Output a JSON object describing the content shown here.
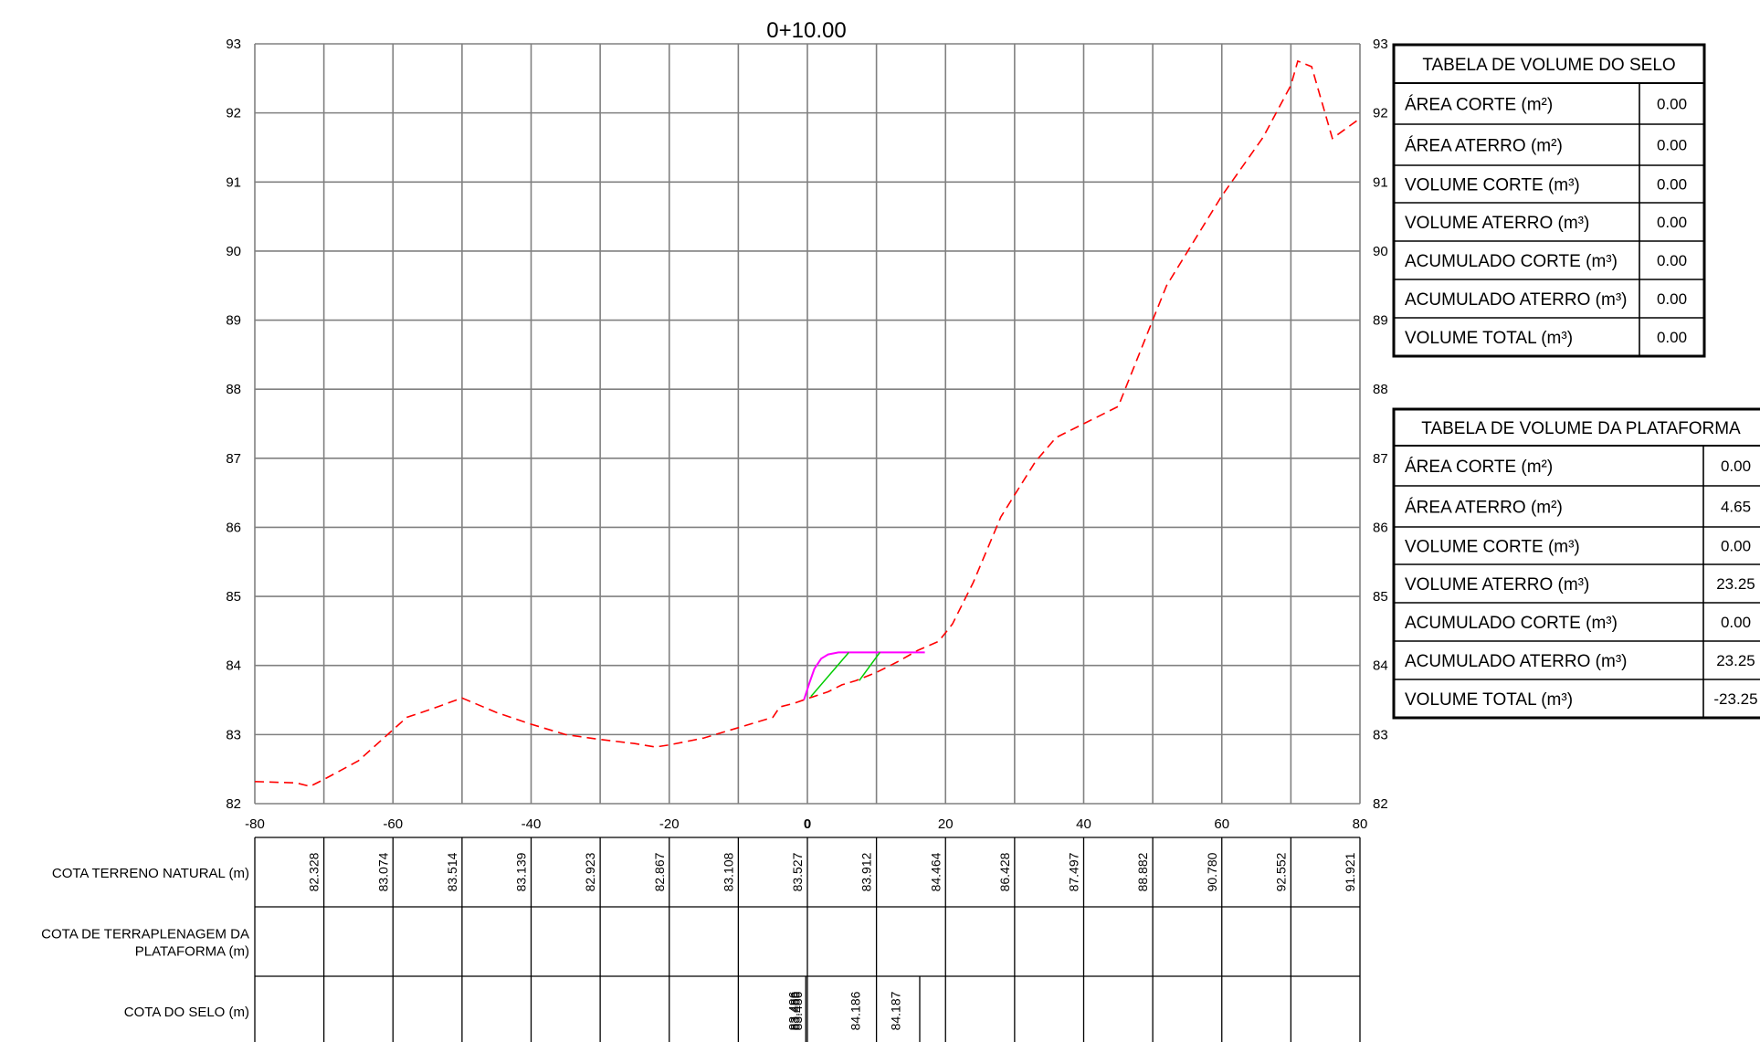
{
  "chart_data": {
    "type": "line",
    "title": "0+10.00",
    "xlim": [
      -80,
      80
    ],
    "ylim": [
      82,
      93
    ],
    "x_ticks": [
      "-80",
      "-60",
      "-40",
      "-20",
      "0",
      "20",
      "40",
      "60",
      "80"
    ],
    "y_ticks": [
      "82",
      "83",
      "84",
      "85",
      "86",
      "87",
      "88",
      "89",
      "90",
      "91",
      "92",
      "93"
    ],
    "grid": true,
    "series": [
      {
        "color": "#ff0000",
        "style": "dashed",
        "x": [
          -80,
          -74,
          -72,
          -70,
          -65,
          -60,
          -58,
          -55,
          -50,
          -45,
          -40,
          -35,
          -30,
          -25,
          -22,
          -20,
          -15,
          -10,
          -5,
          -4,
          -2,
          0,
          3,
          5,
          7,
          10,
          13,
          16,
          19,
          21,
          24,
          28,
          33,
          36,
          40,
          45,
          48,
          50,
          52,
          56,
          60,
          66,
          70,
          71,
          73,
          76,
          80
        ],
        "y": [
          82.32,
          82.3,
          82.25,
          82.35,
          82.62,
          83.07,
          83.25,
          83.35,
          83.53,
          83.32,
          83.15,
          83.0,
          82.93,
          82.87,
          82.82,
          82.85,
          82.95,
          83.1,
          83.25,
          83.4,
          83.45,
          83.52,
          83.62,
          83.72,
          83.78,
          83.9,
          84.05,
          84.22,
          84.35,
          84.6,
          85.2,
          86.15,
          86.95,
          87.3,
          87.5,
          87.75,
          88.5,
          89.0,
          89.5,
          90.15,
          90.8,
          91.65,
          92.4,
          92.75,
          92.67,
          91.63,
          91.92
        ]
      },
      {
        "color": "#ff00ff",
        "style": "solid",
        "x": [
          -0.5,
          0.3,
          1.0,
          2.0,
          3.0,
          4.5,
          7.0,
          10.0,
          13.0,
          16.0,
          17.0
        ],
        "y": [
          83.5,
          83.75,
          83.95,
          84.1,
          84.16,
          84.19,
          84.19,
          84.19,
          84.19,
          84.19,
          84.19
        ]
      }
    ],
    "hatch_segments": [
      {
        "x": [
          0.5,
          6.0
        ],
        "y": [
          83.55,
          84.19
        ]
      },
      {
        "x": [
          7.5,
          10.5
        ],
        "y": [
          83.78,
          84.19
        ]
      }
    ],
    "rows": [
      {
        "label_lines": [
          "COTA TERRENO NATURAL (m)"
        ],
        "values": [
          "82.328",
          "83.074",
          "83.514",
          "83.139",
          "82.923",
          "82.867",
          "83.108",
          "83.527",
          "83.912",
          "84.464",
          "86.428",
          "87.497",
          "88.882",
          "90.780",
          "92.552",
          "91.921"
        ]
      },
      {
        "label_lines": [
          "COTA DE TERRAPLENAGEM DA",
          "PLATAFORMA (m)"
        ],
        "values": []
      },
      {
        "label_lines": [
          "COTA DO SELO (m)"
        ],
        "values": [
          "83.486",
          "83.486",
          "83.486",
          "84.186",
          "84.187"
        ]
      }
    ]
  },
  "tables": [
    {
      "title": "TABELA DE VOLUME DO SELO",
      "rows": [
        {
          "label": "ÁREA CORTE (m²)",
          "value": "0.00"
        },
        {
          "label": "ÁREA ATERRO (m²)",
          "value": "0.00"
        },
        {
          "label": "VOLUME CORTE (m³)",
          "value": "0.00"
        },
        {
          "label": "VOLUME ATERRO (m³)",
          "value": "0.00"
        },
        {
          "label": "ACUMULADO CORTE (m³)",
          "value": "0.00"
        },
        {
          "label": "ACUMULADO ATERRO (m³)",
          "value": "0.00"
        },
        {
          "label": "VOLUME TOTAL (m³)",
          "value": "0.00"
        }
      ]
    },
    {
      "title": "TABELA DE VOLUME DA PLATAFORMA",
      "rows": [
        {
          "label": "ÁREA CORTE (m²)",
          "value": "0.00"
        },
        {
          "label": "ÁREA ATERRO (m²)",
          "value": "4.65"
        },
        {
          "label": "VOLUME CORTE (m³)",
          "value": "0.00"
        },
        {
          "label": "VOLUME ATERRO (m³)",
          "value": "23.25"
        },
        {
          "label": "ACUMULADO CORTE (m³)",
          "value": "0.00"
        },
        {
          "label": "ACUMULADO ATERRO (m³)",
          "value": "23.25"
        },
        {
          "label": "VOLUME TOTAL (m³)",
          "value": "-23.25"
        }
      ]
    }
  ]
}
